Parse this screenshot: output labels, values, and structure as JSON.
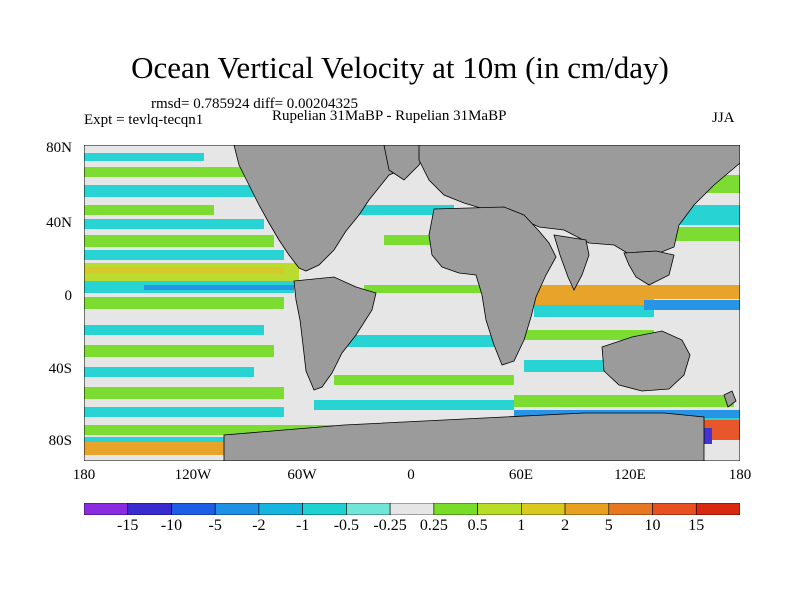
{
  "title": "Ocean Vertical Velocity at 10m (in cm/day)",
  "stats_line": "rmsd= 0.785924 diff= 0.00204325",
  "experiment": "Expt = tevlq-tecqn1",
  "comparison": "Rupelian  31MaBP - Rupelian  31MaBP",
  "season": "JJA",
  "y_axis_labels": [
    "80N",
    "40N",
    "0",
    "40S",
    "80S"
  ],
  "x_axis_labels": [
    "180",
    "120W",
    "60W",
    "0",
    "60E",
    "120E",
    "180"
  ],
  "colorbar": {
    "labels": [
      "-15",
      "-10",
      "-5",
      "-2",
      "-1",
      "-0.5",
      "-0.25",
      "0.25",
      "0.5",
      "1",
      "2",
      "5",
      "10",
      "15"
    ],
    "colors": [
      "#8a2be2",
      "#3a2bd0",
      "#1e5de6",
      "#1e90e6",
      "#18b4e0",
      "#1ed2d2",
      "#6fe6d6",
      "#e6e6e6",
      "#78dc28",
      "#b8dc28",
      "#d8c820",
      "#e8a020",
      "#e87820",
      "#e85020",
      "#d82810"
    ]
  },
  "colors": {
    "land": "#9b9b9b",
    "ocean_neutral": "#e6e6e6"
  }
}
